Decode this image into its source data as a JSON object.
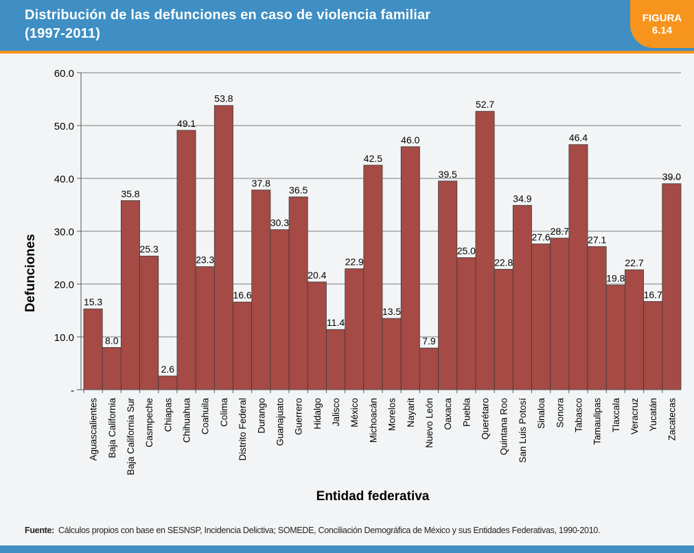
{
  "header": {
    "title_line1": "Distribución de las defunciones en caso de violencia familiar",
    "title_line2": "(1997-2011)",
    "figure_label": "FIGURA",
    "figure_number": "6.14",
    "colors": {
      "band": "#3f8fc4",
      "accent": "#f7941d"
    }
  },
  "chart_data": {
    "type": "bar",
    "xlabel": "Entidad federativa",
    "ylabel": "Defunciones",
    "ylim": [
      0,
      60
    ],
    "y_ticks": [
      "-",
      "10.0",
      "20.0",
      "30.0",
      "40.0",
      "50.0",
      "60.0"
    ],
    "grid": true,
    "bar_color": "#a54a45",
    "categories": [
      "Aguascalientes",
      "Baja California",
      "Baja California Sur",
      "Casmpeche",
      "Chiapas",
      "Chihuahua",
      "Coahuila",
      "Colima",
      "Distrito Federal",
      "Durango",
      "Guanajuato",
      "Guerrero",
      "Hidalgo",
      "Jalisco",
      "México",
      "Michoacán",
      "Morelos",
      "Nayarit",
      "Nuevo León",
      "Oaxaca",
      "Puebla",
      "Querétaro",
      "Quintana Roo",
      "San Luis Potosí",
      "Sinaloa",
      "Sonora",
      "Tabasco",
      "Tamaulipas",
      "Tlaxcala",
      "Veracruz",
      "Yucatán",
      "Zacatecas"
    ],
    "values": [
      15.3,
      8.0,
      35.8,
      25.3,
      2.6,
      49.1,
      23.3,
      53.8,
      16.6,
      37.8,
      30.3,
      36.5,
      20.4,
      11.4,
      22.9,
      42.5,
      13.5,
      46.0,
      7.9,
      39.5,
      25.0,
      52.7,
      22.8,
      34.9,
      27.6,
      28.7,
      46.4,
      27.1,
      19.8,
      22.7,
      16.7,
      39.0
    ],
    "labels": [
      "15.3",
      "8.0",
      "35.8",
      "25.3",
      "2.6",
      "49.1",
      "23.3",
      "53.8",
      "16.6",
      "37.8",
      "30.3",
      "36.5",
      "20.4",
      "11.4",
      "22.9",
      "42.5",
      "13.5",
      "46.0",
      "7.9",
      "39.5",
      "25.0",
      "52.7",
      "22.8",
      "34.9",
      "27.6",
      "28.7",
      "46.4",
      "27.1",
      "19.8",
      "22.7",
      "16.7",
      "39.0"
    ]
  },
  "source": {
    "label": "Fuente:",
    "text": "Cálculos propios con base en SESNSP, Incidencia Delictiva; SOMEDE, Conciliación Demográfica de México y sus Entidades Federativas, 1990-2010."
  }
}
